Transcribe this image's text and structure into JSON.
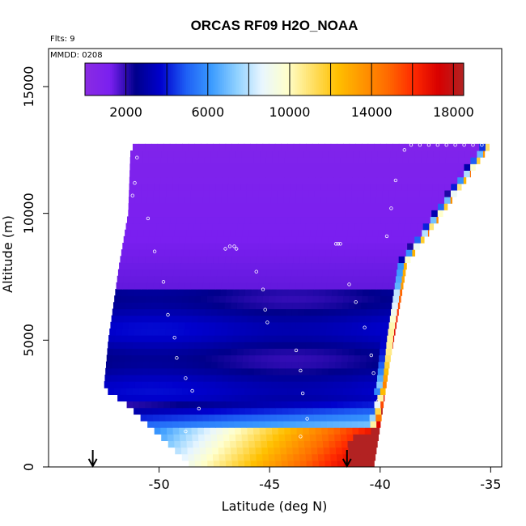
{
  "chart_data": {
    "type": "heatmap",
    "title": "ORCAS RF09 H2O_NOAA",
    "flights_note": "Flts: 9",
    "date_note": "MMDD: 0208",
    "xlabel": "Latitude (deg N)",
    "ylabel": "Altitude (m)",
    "xlim": [
      -55,
      -34.5
    ],
    "ylim": [
      0,
      16500
    ],
    "x_ticks": [
      -50,
      -45,
      -40,
      -35
    ],
    "y_ticks": [
      0,
      5000,
      10000,
      15000
    ],
    "colorbar": {
      "min": 0,
      "max": 18500,
      "ticks": [
        2000,
        6000,
        10000,
        14000,
        18000
      ],
      "boundaries": [
        0,
        2000,
        4000,
        6000,
        8000,
        10000,
        12000,
        14000,
        16000,
        18000
      ],
      "colors": [
        "#8a2be2",
        "#7a1ff0",
        "#00008b",
        "#0000cd",
        "#1e5ef5",
        "#3a9bff",
        "#8ed0ff",
        "#e8f6ff",
        "#ffffcc",
        "#ffe066",
        "#ffc000",
        "#ff9500",
        "#ff6a00",
        "#ff2a00",
        "#d80000",
        "#b22222"
      ]
    },
    "profile_region": {
      "left_edge": [
        [
          -48.5,
          0
        ],
        [
          -51.5,
          2500
        ],
        [
          -52.5,
          3100
        ],
        [
          -52.3,
          5000
        ],
        [
          -51.8,
          8000
        ],
        [
          -51.4,
          10000
        ],
        [
          -51.3,
          12400
        ]
      ],
      "right_edge": [
        [
          -35.0,
          12700
        ],
        [
          -38.8,
          8000
        ],
        [
          -39.6,
          4000
        ],
        [
          -40.1,
          1100
        ],
        [
          -40.3,
          0
        ]
      ],
      "low_h2o_band_m": [
        2500,
        7000
      ]
    },
    "flight_track": [
      [
        -51.0,
        12200
      ],
      [
        -51.1,
        11200
      ],
      [
        -51.2,
        10700
      ],
      [
        -50.5,
        9800
      ],
      [
        -50.2,
        8500
      ],
      [
        -49.8,
        7300
      ],
      [
        -49.6,
        6000
      ],
      [
        -49.3,
        5100
      ],
      [
        -49.2,
        4300
      ],
      [
        -48.8,
        3500
      ],
      [
        -48.5,
        3000
      ],
      [
        -48.2,
        2300
      ],
      [
        -48.8,
        1400
      ],
      [
        -47.0,
        8600
      ],
      [
        -46.8,
        8700
      ],
      [
        -46.6,
        8700
      ],
      [
        -46.5,
        8600
      ],
      [
        -45.6,
        7700
      ],
      [
        -45.3,
        7000
      ],
      [
        -45.2,
        6200
      ],
      [
        -45.1,
        5700
      ],
      [
        -43.8,
        4600
      ],
      [
        -43.6,
        3800
      ],
      [
        -43.5,
        2900
      ],
      [
        -43.3,
        1900
      ],
      [
        -43.6,
        1200
      ],
      [
        -42.0,
        8800
      ],
      [
        -41.9,
        8800
      ],
      [
        -41.8,
        8800
      ],
      [
        -41.4,
        7200
      ],
      [
        -41.1,
        6500
      ],
      [
        -40.7,
        5500
      ],
      [
        -40.4,
        4400
      ],
      [
        -40.3,
        3700
      ],
      [
        -40.1,
        2600
      ],
      [
        -39.7,
        9100
      ],
      [
        -39.5,
        10200
      ],
      [
        -39.3,
        11300
      ],
      [
        -38.9,
        12500
      ],
      [
        -38.6,
        12700
      ],
      [
        -38.2,
        12700
      ],
      [
        -37.8,
        12700
      ],
      [
        -37.4,
        12700
      ],
      [
        -37.0,
        12700
      ],
      [
        -36.6,
        12700
      ],
      [
        -36.2,
        12700
      ],
      [
        -35.8,
        12700
      ],
      [
        -35.4,
        12700
      ]
    ],
    "latitude_markers": [
      -53.0,
      -41.5
    ]
  }
}
